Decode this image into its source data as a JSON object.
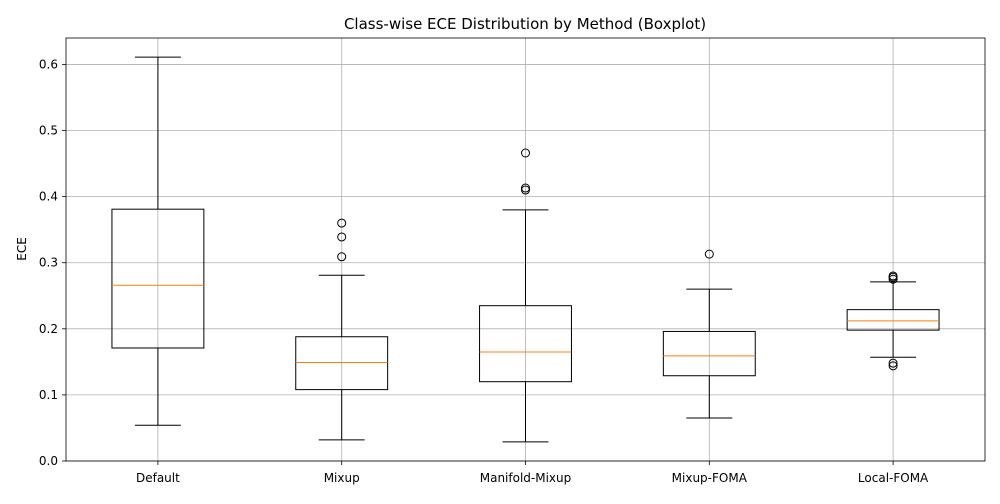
{
  "chart_data": {
    "type": "boxplot",
    "title": "Class-wise ECE Distribution by Method (Boxplot)",
    "xlabel": "",
    "ylabel": "ECE",
    "ylim": [
      0.0,
      0.64
    ],
    "yticks": [
      "0.0",
      "0.1",
      "0.2",
      "0.3",
      "0.4",
      "0.5",
      "0.6"
    ],
    "ytick_values": [
      0.0,
      0.1,
      0.2,
      0.3,
      0.4,
      0.5,
      0.6
    ],
    "grid": true,
    "categories": [
      "Default",
      "Mixup",
      "Manifold-Mixup",
      "Mixup-FOMA",
      "Local-FOMA"
    ],
    "boxes": [
      {
        "name": "Default",
        "whisker_low": 0.054,
        "q1": 0.171,
        "median": 0.266,
        "q3": 0.381,
        "whisker_high": 0.611,
        "outliers": []
      },
      {
        "name": "Mixup",
        "whisker_low": 0.032,
        "q1": 0.108,
        "median": 0.149,
        "q3": 0.188,
        "whisker_high": 0.281,
        "outliers": [
          0.309,
          0.339,
          0.36
        ]
      },
      {
        "name": "Manifold-Mixup",
        "whisker_low": 0.029,
        "q1": 0.12,
        "median": 0.165,
        "q3": 0.235,
        "whisker_high": 0.38,
        "outliers": [
          0.41,
          0.413,
          0.466
        ]
      },
      {
        "name": "Mixup-FOMA",
        "whisker_low": 0.065,
        "q1": 0.129,
        "median": 0.159,
        "q3": 0.196,
        "whisker_high": 0.26,
        "outliers": [
          0.313
        ]
      },
      {
        "name": "Local-FOMA",
        "whisker_low": 0.157,
        "q1": 0.198,
        "median": 0.212,
        "q3": 0.229,
        "whisker_high": 0.271,
        "outliers": [
          0.144,
          0.148,
          0.275,
          0.278,
          0.28
        ]
      }
    ],
    "colors": {
      "box": "#000000",
      "median": "#ff7f0e",
      "grid": "#b0b0b0",
      "background": "#ffffff"
    }
  }
}
